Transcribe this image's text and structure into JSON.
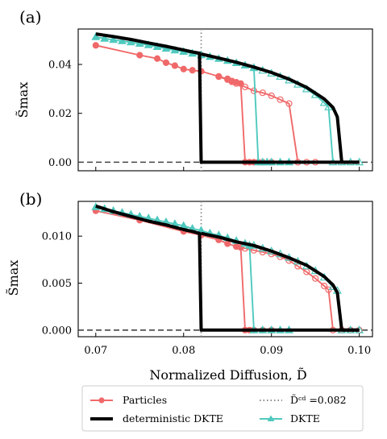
{
  "chart_data": [
    {
      "type": "line",
      "panel_label": "(a)",
      "ylabel": "S̃max",
      "xlim": [
        0.068,
        0.1015
      ],
      "ylim": [
        -0.0035,
        0.0545
      ],
      "yticks": [
        0.0,
        0.02,
        0.04
      ],
      "ytick_labels": [
        "0.00",
        "0.02",
        "0.04"
      ],
      "xticks": [
        0.07,
        0.08,
        0.09,
        0.1
      ],
      "xtick_labels": [
        "",
        "",
        "",
        ""
      ],
      "threshold_line": {
        "x": 0.082
      },
      "baseline_y": 0.0,
      "series": [
        {
          "name": "deterministic DKTE",
          "color": "#000000",
          "marker": "none",
          "points": [
            [
              0.07,
              0.0525
            ],
            [
              0.072,
              0.0514
            ],
            [
              0.074,
              0.0502
            ],
            [
              0.076,
              0.0488
            ],
            [
              0.078,
              0.0474
            ],
            [
              0.08,
              0.0459
            ],
            [
              0.081,
              0.0451
            ],
            [
              0.0818,
              0.0446
            ],
            [
              0.082,
              0.0
            ],
            [
              0.085,
              0.0
            ],
            [
              0.09,
              0.0
            ],
            [
              0.095,
              0.0
            ],
            [
              0.1,
              0.0
            ]
          ]
        },
        {
          "name": "deterministic DKTE",
          "color": "#000000",
          "marker": "none",
          "points": [
            [
              0.082,
              0.0443
            ],
            [
              0.084,
              0.0426
            ],
            [
              0.086,
              0.0409
            ],
            [
              0.088,
              0.0389
            ],
            [
              0.09,
              0.0367
            ],
            [
              0.092,
              0.034
            ],
            [
              0.094,
              0.0306
            ],
            [
              0.096,
              0.0259
            ],
            [
              0.097,
              0.0224
            ],
            [
              0.0975,
              0.0185
            ],
            [
              0.098,
              0.0
            ],
            [
              0.1,
              0.0
            ]
          ]
        },
        {
          "name": "Particles",
          "color": "#F0696A",
          "marker": "circle-filled",
          "points": [
            [
              0.07,
              0.0478
            ],
            [
              0.075,
              0.0438
            ],
            [
              0.077,
              0.0424
            ],
            [
              0.078,
              0.0407
            ],
            [
              0.079,
              0.0395
            ],
            [
              0.08,
              0.0381
            ],
            [
              0.081,
              0.0376
            ],
            [
              0.082,
              0.0372
            ],
            [
              0.084,
              0.0351
            ],
            [
              0.085,
              0.0341
            ],
            [
              0.0855,
              0.0332
            ],
            [
              0.086,
              0.0327
            ],
            [
              0.0865,
              0.0322
            ],
            [
              0.087,
              0.0
            ],
            [
              0.0875,
              0.0
            ],
            [
              0.088,
              0.0
            ],
            [
              0.0885,
              0.0
            ],
            [
              0.089,
              0.0
            ],
            [
              0.09,
              0.0
            ]
          ]
        },
        {
          "name": "Particles",
          "color": "#F0696A",
          "marker": "circle-open",
          "points": [
            [
              0.084,
              0.035
            ],
            [
              0.085,
              0.0338
            ],
            [
              0.0855,
              0.0329
            ],
            [
              0.086,
              0.0322
            ],
            [
              0.087,
              0.0308
            ],
            [
              0.088,
              0.0292
            ],
            [
              0.089,
              0.0284
            ],
            [
              0.09,
              0.0272
            ],
            [
              0.091,
              0.0256
            ],
            [
              0.092,
              0.024
            ],
            [
              0.093,
              0.0
            ],
            [
              0.094,
              0.0
            ],
            [
              0.095,
              0.0
            ]
          ]
        },
        {
          "name": "DKTE",
          "color": "#4FC9BE",
          "marker": "triangle-filled",
          "points": [
            [
              0.07,
              0.0512
            ],
            [
              0.071,
              0.0506
            ],
            [
              0.072,
              0.0501
            ],
            [
              0.073,
              0.0496
            ],
            [
              0.074,
              0.0491
            ],
            [
              0.075,
              0.0485
            ],
            [
              0.076,
              0.0479
            ],
            [
              0.077,
              0.0472
            ],
            [
              0.078,
              0.0465
            ],
            [
              0.079,
              0.0458
            ],
            [
              0.08,
              0.0452
            ],
            [
              0.081,
              0.0445
            ],
            [
              0.082,
              0.0438
            ],
            [
              0.083,
              0.0431
            ],
            [
              0.084,
              0.0423
            ],
            [
              0.085,
              0.0415
            ],
            [
              0.086,
              0.0406
            ],
            [
              0.087,
              0.0396
            ],
            [
              0.088,
              0.0386
            ],
            [
              0.0885,
              0.0
            ],
            [
              0.089,
              0.0
            ],
            [
              0.0895,
              0.0
            ],
            [
              0.09,
              0.0
            ],
            [
              0.091,
              0.0
            ],
            [
              0.092,
              0.0
            ]
          ]
        },
        {
          "name": "DKTE",
          "color": "#4FC9BE",
          "marker": "triangle-open",
          "points": [
            [
              0.088,
              0.0386
            ],
            [
              0.089,
              0.0375
            ],
            [
              0.09,
              0.0363
            ],
            [
              0.091,
              0.035
            ],
            [
              0.092,
              0.0335
            ],
            [
              0.093,
              0.0318
            ],
            [
              0.094,
              0.0299
            ],
            [
              0.095,
              0.0275
            ],
            [
              0.096,
              0.0243
            ],
            [
              0.0965,
              0.0225
            ],
            [
              0.097,
              0.0
            ],
            [
              0.098,
              0.0
            ],
            [
              0.099,
              0.0
            ],
            [
              0.1,
              0.0
            ]
          ]
        }
      ]
    },
    {
      "type": "line",
      "panel_label": "(b)",
      "ylabel": "S̃max",
      "xlabel": "Normalized Diffusion, D̃",
      "xlim": [
        0.068,
        0.1015
      ],
      "ylim": [
        -0.0007,
        0.0137
      ],
      "yticks": [
        0.0,
        0.005,
        0.01
      ],
      "ytick_labels": [
        "0.000",
        "0.005",
        "0.010"
      ],
      "xticks": [
        0.07,
        0.08,
        0.09,
        0.1
      ],
      "xtick_labels": [
        "0.07",
        "0.08",
        "0.09",
        "0.10"
      ],
      "threshold_line": {
        "x": 0.082
      },
      "baseline_y": 0.0,
      "series": [
        {
          "name": "deterministic DKTE",
          "color": "#000000",
          "marker": "none",
          "points": [
            [
              0.07,
              0.0132
            ],
            [
              0.072,
              0.0126
            ],
            [
              0.074,
              0.0121
            ],
            [
              0.076,
              0.0116
            ],
            [
              0.078,
              0.0112
            ],
            [
              0.08,
              0.0107
            ],
            [
              0.081,
              0.0105
            ],
            [
              0.0818,
              0.0103
            ],
            [
              0.082,
              0.0
            ],
            [
              0.085,
              0.0
            ],
            [
              0.09,
              0.0
            ],
            [
              0.095,
              0.0
            ],
            [
              0.1,
              0.0
            ]
          ]
        },
        {
          "name": "deterministic DKTE",
          "color": "#000000",
          "marker": "none",
          "points": [
            [
              0.082,
              0.0103
            ],
            [
              0.084,
              0.0099
            ],
            [
              0.086,
              0.0094
            ],
            [
              0.088,
              0.009
            ],
            [
              0.09,
              0.0084
            ],
            [
              0.092,
              0.0077
            ],
            [
              0.094,
              0.0069
            ],
            [
              0.096,
              0.0057
            ],
            [
              0.097,
              0.0048
            ],
            [
              0.0975,
              0.004
            ],
            [
              0.098,
              0.0
            ],
            [
              0.1,
              0.0
            ]
          ]
        },
        {
          "name": "Particles",
          "color": "#F0696A",
          "marker": "circle-filled",
          "points": [
            [
              0.07,
              0.0127
            ],
            [
              0.075,
              0.0117
            ],
            [
              0.08,
              0.0105
            ],
            [
              0.082,
              0.0101
            ],
            [
              0.084,
              0.0096
            ],
            [
              0.085,
              0.0092
            ],
            [
              0.086,
              0.0089
            ],
            [
              0.0865,
              0.0088
            ],
            [
              0.087,
              0.0
            ],
            [
              0.0875,
              0.0
            ],
            [
              0.088,
              0.0
            ],
            [
              0.089,
              0.0
            ],
            [
              0.09,
              0.0
            ]
          ]
        },
        {
          "name": "Particles",
          "color": "#F0696A",
          "marker": "circle-open",
          "points": [
            [
              0.086,
              0.0089
            ],
            [
              0.087,
              0.0087
            ],
            [
              0.088,
              0.0085
            ],
            [
              0.089,
              0.0083
            ],
            [
              0.09,
              0.0081
            ],
            [
              0.091,
              0.0078
            ],
            [
              0.092,
              0.0074
            ],
            [
              0.093,
              0.0068
            ],
            [
              0.094,
              0.0062
            ],
            [
              0.095,
              0.0055
            ],
            [
              0.096,
              0.0047
            ],
            [
              0.0965,
              0.0043
            ],
            [
              0.097,
              0.0
            ],
            [
              0.098,
              0.0
            ],
            [
              0.099,
              0.0
            ],
            [
              0.1,
              0.0
            ]
          ]
        },
        {
          "name": "DKTE",
          "color": "#4FC9BE",
          "marker": "triangle-filled",
          "points": [
            [
              0.07,
              0.0131
            ],
            [
              0.071,
              0.0129
            ],
            [
              0.072,
              0.0127
            ],
            [
              0.073,
              0.0125
            ],
            [
              0.074,
              0.0123
            ],
            [
              0.075,
              0.0121
            ],
            [
              0.076,
              0.0119
            ],
            [
              0.077,
              0.0117
            ],
            [
              0.078,
              0.0115
            ],
            [
              0.079,
              0.0113
            ],
            [
              0.08,
              0.0111
            ],
            [
              0.081,
              0.0108
            ],
            [
              0.082,
              0.0106
            ],
            [
              0.083,
              0.0103
            ],
            [
              0.084,
              0.0101
            ],
            [
              0.085,
              0.0098
            ],
            [
              0.086,
              0.0095
            ],
            [
              0.087,
              0.0092
            ],
            [
              0.0875,
              0.009
            ],
            [
              0.088,
              0.0
            ],
            [
              0.089,
              0.0
            ],
            [
              0.09,
              0.0
            ],
            [
              0.091,
              0.0
            ],
            [
              0.092,
              0.0
            ]
          ]
        },
        {
          "name": "DKTE",
          "color": "#4FC9BE",
          "marker": "triangle-open",
          "points": [
            [
              0.087,
              0.0092
            ],
            [
              0.088,
              0.009
            ],
            [
              0.089,
              0.0087
            ],
            [
              0.09,
              0.0084
            ],
            [
              0.091,
              0.0081
            ],
            [
              0.092,
              0.0077
            ],
            [
              0.093,
              0.0073
            ],
            [
              0.094,
              0.0068
            ],
            [
              0.095,
              0.0063
            ],
            [
              0.096,
              0.0056
            ],
            [
              0.097,
              0.0046
            ],
            [
              0.0975,
              0.0042
            ],
            [
              0.098,
              0.0
            ],
            [
              0.099,
              0.0
            ],
            [
              0.1,
              0.0
            ]
          ]
        }
      ]
    }
  ],
  "legend": {
    "placement": "bottom",
    "items": [
      {
        "label": "Particles",
        "kind": "circle-line",
        "color": "#F0696A"
      },
      {
        "label": "D̃ᶜᵈ =0.082",
        "kind": "dotted",
        "color": "#888888"
      },
      {
        "label": "deterministic DKTE",
        "kind": "thick-line",
        "color": "#000000"
      },
      {
        "label": "DKTE",
        "kind": "triangle-line",
        "color": "#4FC9BE"
      }
    ]
  },
  "colors": {
    "particles": "#F0696A",
    "dkte": "#4FC9BE",
    "deterministic": "#000000",
    "threshold": "#888888",
    "baseline": "#444444"
  }
}
